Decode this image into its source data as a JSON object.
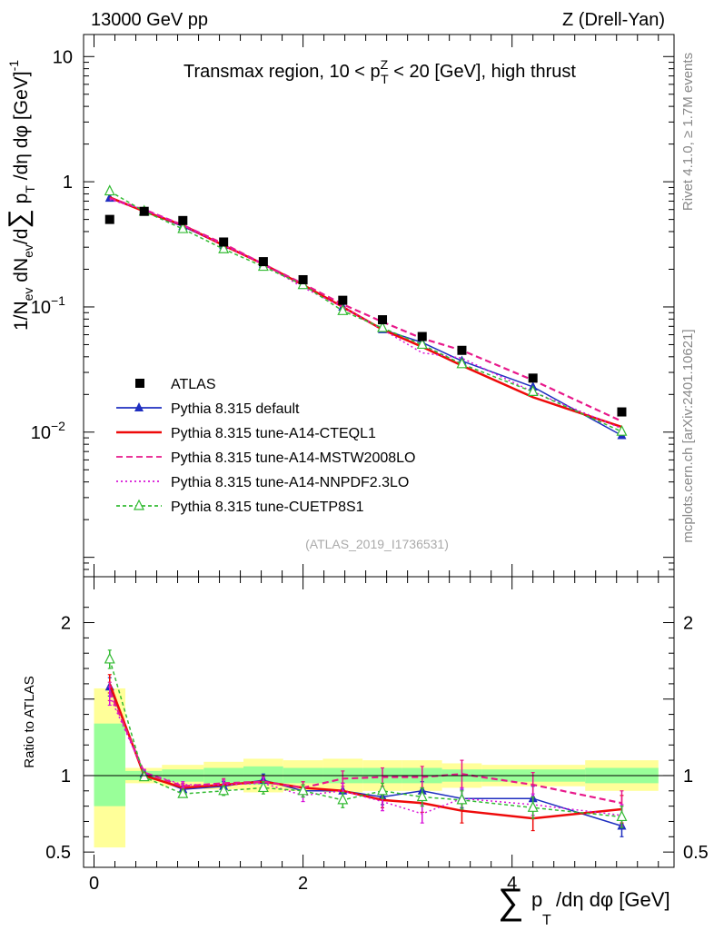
{
  "header": {
    "left": "13000 GeV pp",
    "right": "Z (Drell-Yan)",
    "title_pre": "Transmax region, 10 < p",
    "title_sup": "Z",
    "title_sub": "T",
    "title_post": " < 20 [GeV], high thrust"
  },
  "side_labels": {
    "rivet": "Rivet 4.1.0, ≥ 1.7M events",
    "mcplots": "mcplots.cern.ch [arXiv:2401.10621]"
  },
  "watermark": "(ATLAS_2019_I1736531)",
  "axes": {
    "ylabel_main": "1/N_ev dN_ev/d∑ p_T /dη dφ [GeV]^-1",
    "ylabel_ratio": "Ratio to ATLAS",
    "xlabel_sum": "∑",
    "xlabel_p": "p",
    "xlabel_sub": "T",
    "xlabel_rest": "/dη dφ [GeV]",
    "main_ticks": [
      {
        "value": 10,
        "label": "10"
      },
      {
        "value": 1,
        "label": "1"
      },
      {
        "value": 0.1,
        "label": "10",
        "exp": "−1"
      },
      {
        "value": 0.01,
        "label": "10",
        "exp": "−2"
      }
    ],
    "ratio_ticks": [
      {
        "value": 2,
        "label": "2"
      },
      {
        "value": 1,
        "label": "1"
      },
      {
        "value": 0.5,
        "label": "0.5"
      }
    ],
    "x_ticks": [
      {
        "value": 0,
        "label": "0"
      },
      {
        "value": 2,
        "label": "2"
      },
      {
        "value": 4,
        "label": "4"
      }
    ]
  },
  "chart_data": {
    "type": "scatter",
    "title": "Transmax region, 10 < pT Z < 20 [GeV], high thrust",
    "xlabel": "∑ pT /dη dφ [GeV]",
    "ylabel": "1/Nev dNev/d∑ pT /dη dφ [GeV]^-1",
    "xlim": [
      -0.1,
      5.55
    ],
    "ylim": [
      0.0007,
      15
    ],
    "yscale": "log",
    "ratio_ylim": [
      0.4,
      2.3
    ],
    "x": [
      0.15,
      0.48,
      0.85,
      1.24,
      1.62,
      2.0,
      2.38,
      2.76,
      3.14,
      3.52,
      4.2,
      5.05
    ],
    "legend": [
      {
        "name": "ATLAS",
        "color": "#000000"
      },
      {
        "name": "Pythia 8.315 default",
        "color": "#1f2fc0"
      },
      {
        "name": "Pythia 8.315 tune-A14-CTEQL1",
        "color": "#ee0a0a"
      },
      {
        "name": "Pythia 8.315 tune-A14-MSTW2008LO",
        "color": "#e8198b"
      },
      {
        "name": "Pythia 8.315 tune-A14-NNPDF2.3LO",
        "color": "#d813d8"
      },
      {
        "name": "Pythia 8.315 tune-CUETP8S1",
        "color": "#33bb33"
      }
    ],
    "data": {
      "name": "ATLAS",
      "values": [
        0.5,
        0.58,
        0.49,
        0.33,
        0.23,
        0.165,
        0.113,
        0.079,
        0.058,
        0.045,
        0.027,
        0.0145
      ],
      "ratio_band_inner": [
        {
          "x0": 0.0,
          "x1": 0.3,
          "lo": 0.8,
          "hi": 1.34
        },
        {
          "x0": 0.3,
          "x1": 0.65,
          "lo": 0.97,
          "hi": 1.03
        },
        {
          "x0": 0.65,
          "x1": 1.05,
          "lo": 0.96,
          "hi": 1.04
        },
        {
          "x0": 1.05,
          "x1": 1.43,
          "lo": 0.95,
          "hi": 1.05
        },
        {
          "x0": 1.43,
          "x1": 1.81,
          "lo": 0.94,
          "hi": 1.06
        },
        {
          "x0": 1.81,
          "x1": 2.19,
          "lo": 0.95,
          "hi": 1.05
        },
        {
          "x0": 2.19,
          "x1": 2.57,
          "lo": 0.95,
          "hi": 1.05
        },
        {
          "x0": 2.57,
          "x1": 2.95,
          "lo": 0.95,
          "hi": 1.05
        },
        {
          "x0": 2.95,
          "x1": 3.33,
          "lo": 0.95,
          "hi": 1.05
        },
        {
          "x0": 3.33,
          "x1": 3.71,
          "lo": 0.96,
          "hi": 1.04
        },
        {
          "x0": 3.71,
          "x1": 4.7,
          "lo": 0.96,
          "hi": 1.04
        },
        {
          "x0": 4.7,
          "x1": 5.4,
          "lo": 0.95,
          "hi": 1.05
        }
      ],
      "ratio_band_outer": [
        {
          "x0": 0.0,
          "x1": 0.3,
          "lo": 0.53,
          "hi": 1.57
        },
        {
          "x0": 0.3,
          "x1": 0.65,
          "lo": 0.95,
          "hi": 1.05
        },
        {
          "x0": 0.65,
          "x1": 1.05,
          "lo": 0.93,
          "hi": 1.07
        },
        {
          "x0": 1.05,
          "x1": 1.43,
          "lo": 0.91,
          "hi": 1.09
        },
        {
          "x0": 1.43,
          "x1": 1.81,
          "lo": 0.89,
          "hi": 1.11
        },
        {
          "x0": 1.81,
          "x1": 2.19,
          "lo": 0.9,
          "hi": 1.1
        },
        {
          "x0": 2.19,
          "x1": 2.57,
          "lo": 0.89,
          "hi": 1.11
        },
        {
          "x0": 2.57,
          "x1": 2.95,
          "lo": 0.9,
          "hi": 1.1
        },
        {
          "x0": 2.95,
          "x1": 3.33,
          "lo": 0.9,
          "hi": 1.1
        },
        {
          "x0": 3.33,
          "x1": 3.71,
          "lo": 0.92,
          "hi": 1.08
        },
        {
          "x0": 3.71,
          "x1": 4.7,
          "lo": 0.93,
          "hi": 1.07
        },
        {
          "x0": 4.7,
          "x1": 5.4,
          "lo": 0.9,
          "hi": 1.1
        }
      ]
    },
    "series": [
      {
        "name": "Pythia 8.315 default",
        "color": "#1f2fc0",
        "dash": "",
        "marker": "triangle-filled",
        "values": [
          0.74,
          0.58,
          0.44,
          0.31,
          0.22,
          0.149,
          0.1,
          0.066,
          0.052,
          0.037,
          0.023,
          0.0094
        ],
        "ratio": [
          1.58,
          1.01,
          0.91,
          0.93,
          0.97,
          0.9,
          0.9,
          0.86,
          0.9,
          0.85,
          0.85,
          0.67
        ],
        "ratio_err": [
          0.06,
          0.02,
          0.02,
          0.03,
          0.04,
          0.04,
          0.05,
          0.05,
          0.06,
          0.06,
          0.08,
          0.07
        ]
      },
      {
        "name": "Pythia 8.315 tune-A14-CTEQL1",
        "color": "#ee0a0a",
        "dash": "",
        "marker": "none",
        "values": [
          0.75,
          0.58,
          0.45,
          0.31,
          0.22,
          0.15,
          0.1,
          0.066,
          0.048,
          0.034,
          0.019,
          0.011
        ],
        "ratio": [
          1.6,
          1.0,
          0.92,
          0.94,
          0.96,
          0.92,
          0.9,
          0.84,
          0.82,
          0.77,
          0.72,
          0.78
        ],
        "ratio_err": [
          0.06,
          0.02,
          0.02,
          0.03,
          0.04,
          0.04,
          0.05,
          0.05,
          0.06,
          0.08,
          0.08,
          0.09
        ]
      },
      {
        "name": "Pythia 8.315 tune-A14-MSTW2008LO",
        "color": "#e8198b",
        "dash": "7,4",
        "marker": "none",
        "values": [
          0.74,
          0.6,
          0.45,
          0.32,
          0.22,
          0.153,
          0.105,
          0.076,
          0.056,
          0.045,
          0.026,
          0.0122
        ],
        "ratio": [
          1.55,
          1.02,
          0.93,
          0.95,
          0.96,
          0.92,
          0.98,
          0.99,
          0.99,
          1.01,
          0.94,
          0.82
        ],
        "ratio_err": [
          0.06,
          0.02,
          0.02,
          0.03,
          0.04,
          0.04,
          0.05,
          0.06,
          0.07,
          0.09,
          0.08,
          0.08
        ]
      },
      {
        "name": "Pythia 8.315 tune-A14-NNPDF2.3LO",
        "color": "#d813d8",
        "dash": "2,3",
        "marker": "none",
        "values": [
          0.72,
          0.6,
          0.45,
          0.31,
          0.22,
          0.143,
          0.1,
          0.066,
          0.043,
          0.039,
          0.021,
          0.0107
        ],
        "ratio": [
          1.52,
          1.02,
          0.94,
          0.94,
          0.95,
          0.87,
          0.9,
          0.83,
          0.75,
          0.85,
          0.81,
          0.74
        ],
        "ratio_err": [
          0.06,
          0.02,
          0.02,
          0.03,
          0.04,
          0.04,
          0.05,
          0.06,
          0.06,
          0.07,
          0.07,
          0.07
        ]
      },
      {
        "name": "Pythia 8.315 tune-CUETP8S1",
        "color": "#33bb33",
        "dash": "4,3",
        "marker": "triangle-open",
        "values": [
          0.84,
          0.58,
          0.42,
          0.29,
          0.21,
          0.15,
          0.093,
          0.068,
          0.05,
          0.035,
          0.021,
          0.0101
        ],
        "ratio": [
          1.76,
          0.99,
          0.88,
          0.9,
          0.92,
          0.9,
          0.84,
          0.9,
          0.86,
          0.84,
          0.79,
          0.73
        ],
        "ratio_err": [
          0.06,
          0.02,
          0.02,
          0.03,
          0.04,
          0.04,
          0.05,
          0.05,
          0.06,
          0.06,
          0.07,
          0.07
        ]
      }
    ]
  }
}
